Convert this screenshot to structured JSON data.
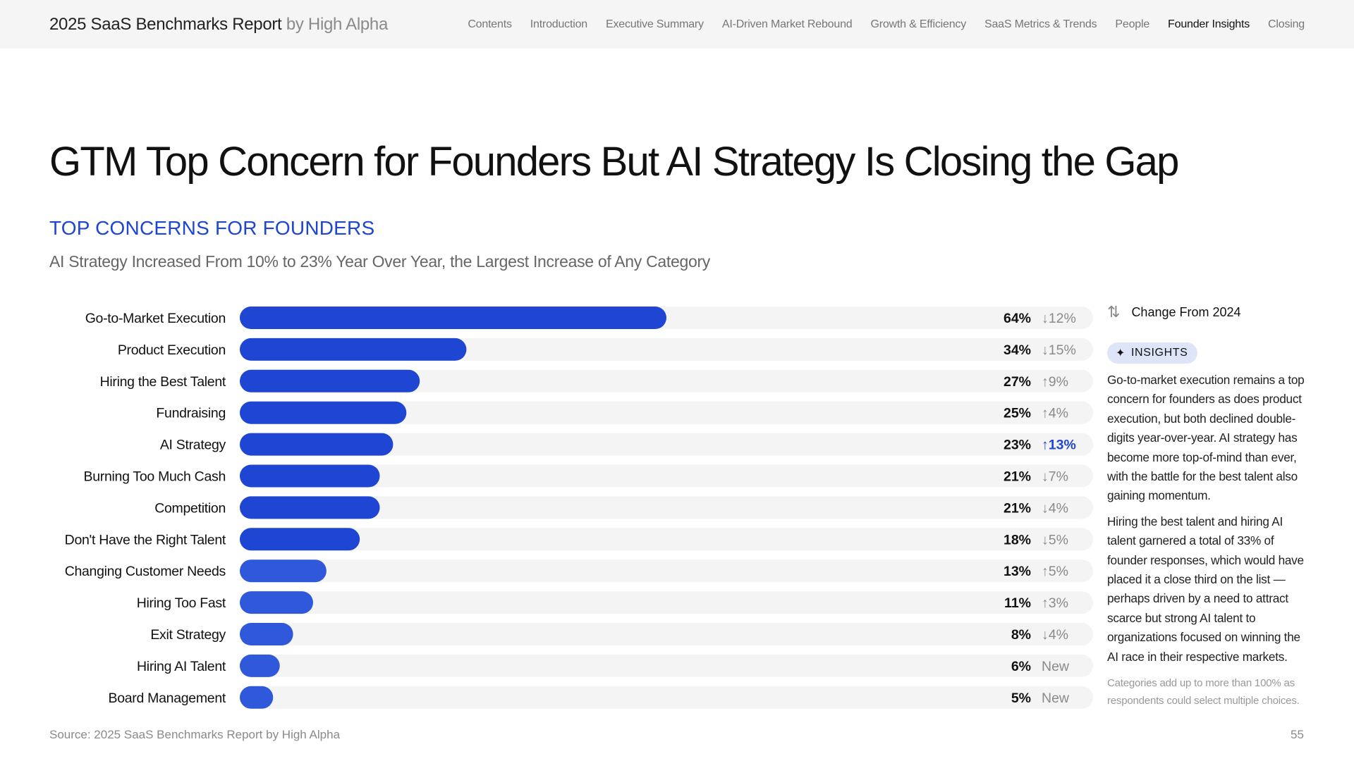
{
  "header": {
    "brand_title": "2025 SaaS Benchmarks Report",
    "brand_by": "by High Alpha",
    "nav": [
      {
        "label": "Contents"
      },
      {
        "label": "Introduction"
      },
      {
        "label": "Executive Summary"
      },
      {
        "label": "AI-Driven Market Rebound"
      },
      {
        "label": "Growth & Efficiency"
      },
      {
        "label": "SaaS Metrics & Trends"
      },
      {
        "label": "People"
      },
      {
        "label": "Founder Insights",
        "active": true
      },
      {
        "label": "Closing"
      }
    ]
  },
  "page": {
    "headline": "GTM Top Concern for Founders But AI Strategy Is Closing the Gap",
    "section_label": "TOP CONCERNS FOR FOUNDERS",
    "subtitle": "AI Strategy Increased From 10% to 23% Year Over Year, the Largest Increase of Any Category"
  },
  "chart_data": {
    "type": "bar",
    "orientation": "horizontal",
    "categories": [
      "Go-to-Market Execution",
      "Product Execution",
      "Hiring the Best Talent",
      "Fundraising",
      "AI Strategy",
      "Burning Too Much Cash",
      "Competition",
      "Don't Have the Right Talent",
      "Changing Customer Needs",
      "Hiring Too Fast",
      "Exit Strategy",
      "Hiring AI Talent",
      "Board Management"
    ],
    "values": [
      64,
      34,
      27,
      25,
      23,
      21,
      21,
      18,
      13,
      11,
      8,
      6,
      5
    ],
    "value_labels": [
      "64%",
      "34%",
      "27%",
      "25%",
      "23%",
      "21%",
      "21%",
      "18%",
      "13%",
      "11%",
      "8%",
      "6%",
      "5%"
    ],
    "changes": [
      {
        "direction": "down",
        "label": "12%"
      },
      {
        "direction": "down",
        "label": "15%"
      },
      {
        "direction": "up",
        "label": "9%"
      },
      {
        "direction": "up",
        "label": "4%"
      },
      {
        "direction": "up",
        "label": "13%",
        "highlight": true
      },
      {
        "direction": "down",
        "label": "7%"
      },
      {
        "direction": "down",
        "label": "4%"
      },
      {
        "direction": "down",
        "label": "5%"
      },
      {
        "direction": "up",
        "label": "5%"
      },
      {
        "direction": "up",
        "label": "3%"
      },
      {
        "direction": "down",
        "label": "4%"
      },
      {
        "direction": "new",
        "label": "New"
      },
      {
        "direction": "new",
        "label": "New"
      }
    ],
    "xlim": [
      0,
      100
    ],
    "grid": false,
    "legend": {
      "label": "Change From 2024",
      "placement": "right"
    }
  },
  "colors": {
    "bar": "#1f45d3",
    "bar_light": "#2f59da",
    "track": "#f4f4f4",
    "highlight": "#1f45d3",
    "muted": "#8a8a8a"
  },
  "insights": {
    "badge": "INSIGHTS",
    "paragraphs": [
      "Go-to-market execution remains a top concern for founders as does product execution, but both declined double-digits year-over-year. AI strategy has become more top-of-mind than ever, with the battle for the best talent also gaining momentum.",
      "Hiring the best talent and hiring AI talent garnered a total of 33% of founder responses, which would have placed it a close third on the list — perhaps driven by a need to attract scarce but strong AI talent to organizations focused on winning the AI race in their respective markets."
    ],
    "footnote": "Categories add up to more than 100% as respondents could select multiple choices."
  },
  "footer": {
    "source": "Source: 2025 SaaS Benchmarks Report by High Alpha",
    "page_number": "55"
  }
}
